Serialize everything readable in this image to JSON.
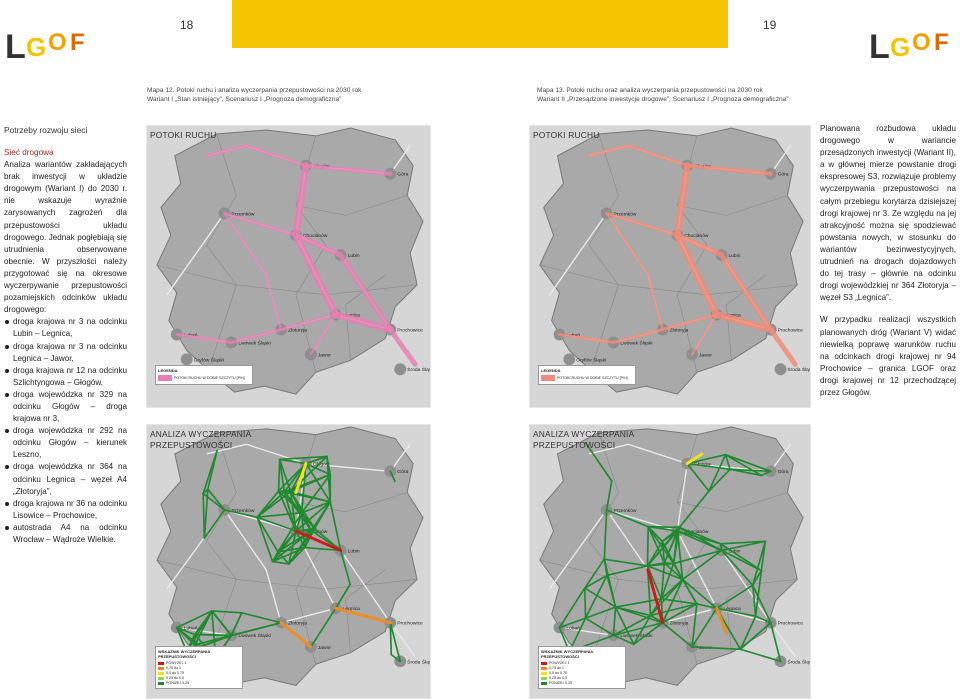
{
  "left_page": {
    "page_number": "18",
    "logo_text": "LGOF",
    "caption_lines": [
      "Mapa 12. Potoki ruchu i analiza wyczerpania przepustowości na 2030 rok",
      "Wariant I „Stan istniejący”, Scenariusz I „Prognoza demograficzna”"
    ],
    "section_title": "Potrzeby rozwoju sieci",
    "subsection_title": "Sieć drogowa",
    "intro": "Analiza wariantów zakładających brak inwestycji w układzie drogowym (Wariant I) do 2030 r. nie wskazuje wyraźnie zarysowanych zagrożeń dla przepustowości układu drogowego. Jednak pogłębiają się utrudnienia obserwowane obecnie. W przyszłości należy przygotować się na okresowe wyczerpywanie przepustowości pozamiejskich odcinków układu drogowego:",
    "bullets": [
      "droga krajowa nr 3 na odcinku Lubin – Legnica,",
      "droga krajowa nr 3 na odcinku Legnica – Jawor,",
      "droga krajowa nr 12 na odcinku Szlichtyngowa – Głogów,",
      "droga wojewódzka nr 329 na odcinku Głogów – droga krajowa nr 3,",
      "droga wojewódzka nr 292 na odcinku Głogów – kierunek Leszno,",
      "droga wojewódzka nr 364 na odcinku Legnica – węzeł A4 „Złotoryja”,",
      "droga krajowa nr 36 na odcinku Lisowice – Prochowice,",
      "autostrada A4 na odcinku Wrocław – Wądroże Wielkie."
    ],
    "map_top_label": "POTOKI RUCHU",
    "map_bottom_label": "ANALIZA WYCZERPANIA\nPRZEPUSTOWOŚCI"
  },
  "right_page": {
    "page_number": "19",
    "logo_text": "LGOF",
    "caption_lines": [
      "Mapa 13. Potoki ruchu oraz analiza wyczerpania przepustowości na 2030 rok",
      "Wariant II „Przesądzone inwestycje drogowe”, Scenariusz I „Prognoza demograficzna”"
    ],
    "map_top_label": "POTOKI RUCHU",
    "map_bottom_label": "ANALIZA WYCZERPANIA\nPRZEPUSTOWOŚCI",
    "para1": "Planowana rozbudowa układu drogowego w wariancie przesądzonych inwestycji (Wariant II), a w głównej mierze powstanie drogi ekspresowej S3, rozwiązuje problemy wyczerpywania przepustowości na całym przebiegu korytarza dzisiejszej drogi krajowej nr 3. Ze względu na jej atrakcyjność można się spodziewać powstania nowych, w stosunku do wariantów bezinwestycyjnych, utrudnień na drogach dojazdowych do tej trasy – głównie na odcinku drogi wojewódzkiej nr 364 Złotoryja – węzeł S3 „Legnica”.",
    "para2": "W przypadku realizacji wszystkich planowanych dróg (Wariant V) widać niewielką poprawę warunków ruchu na odcinkach drogi krajowej nr 94 Prochowice – granica LGOF oraz drogi krajowej nr 12 przechodzącej przez Głogów."
  },
  "map_places": [
    "Głogów",
    "Góra",
    "Chocianów",
    "Lubin",
    "Legnica",
    "Prochowice",
    "Środa Śląska",
    "Złotoryja",
    "Jawor",
    "Lubań",
    "Lwówek Śląski",
    "Gryfów Śląski",
    "Przemków"
  ],
  "legend_flow": {
    "title": "LEGENDA",
    "item": "POTOKI RUCHU W DOBIE SZCZYTU [P/H]"
  },
  "legend_capacity": {
    "title": "WSKAŹNIK WYCZERPANIA PRZEPUSTOWOŚCI",
    "items": [
      "POWYŻEJ 1",
      "0,75 do 1",
      "0,5 do 0,75",
      "0,25 do 0,5",
      "PONIŻEJ 0,25"
    ],
    "colors": [
      "#d4151b",
      "#f28c1a",
      "#f5e11a",
      "#9bd14a",
      "#1c8a2e"
    ]
  },
  "colors": {
    "header_yellow": "#f4c400",
    "accent_red": "#b0261f",
    "flow_pink": "#e87fb4",
    "flow_salmon": "#f08b79",
    "road_green": "#1f8a2f",
    "map_grey": "#bdbdbd"
  }
}
